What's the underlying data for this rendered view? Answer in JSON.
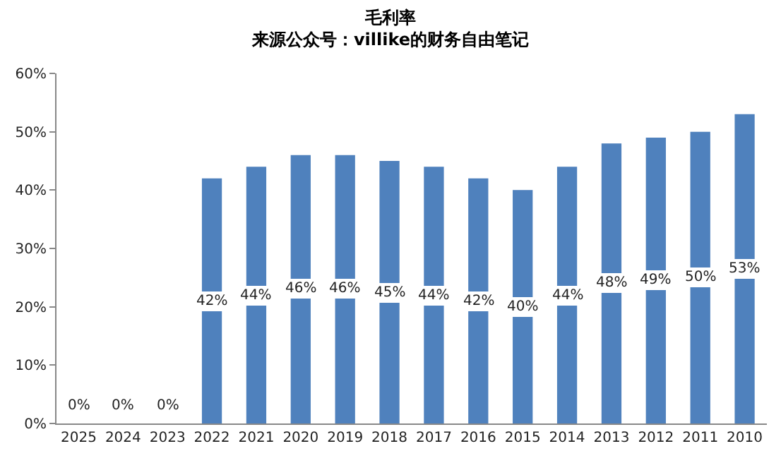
{
  "chart_data": {
    "type": "bar",
    "title": "毛利率",
    "subtitle": "来源公众号：villike的财务自由笔记",
    "categories": [
      "2025",
      "2024",
      "2023",
      "2022",
      "2021",
      "2020",
      "2019",
      "2018",
      "2017",
      "2016",
      "2015",
      "2014",
      "2013",
      "2012",
      "2011",
      "2010"
    ],
    "values": [
      0,
      0,
      0,
      42,
      44,
      46,
      46,
      45,
      44,
      42,
      40,
      44,
      48,
      49,
      50,
      53
    ],
    "value_labels": [
      "0%",
      "0%",
      "0%",
      "42%",
      "44%",
      "46%",
      "46%",
      "45%",
      "44%",
      "42%",
      "40%",
      "44%",
      "48%",
      "49%",
      "50%",
      "53%"
    ],
    "color": "#4f81bd",
    "ylim": [
      0,
      60
    ],
    "yticks": [
      {
        "value": 0,
        "label": "0%"
      },
      {
        "value": 10,
        "label": "10%"
      },
      {
        "value": 20,
        "label": "20%"
      },
      {
        "value": 30,
        "label": "30%"
      },
      {
        "value": 40,
        "label": "40%"
      },
      {
        "value": 50,
        "label": "50%"
      },
      {
        "value": 60,
        "label": "60%"
      }
    ],
    "legend": false
  }
}
